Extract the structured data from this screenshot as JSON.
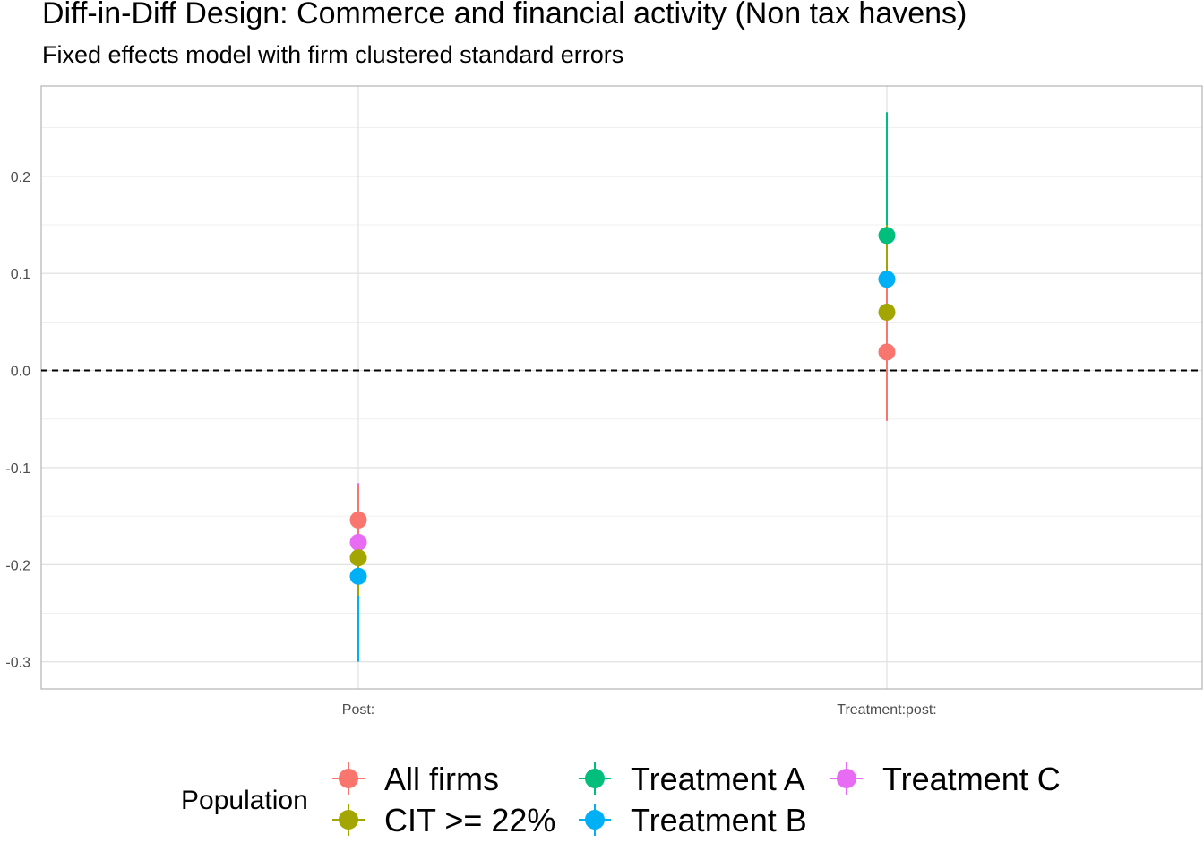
{
  "chart_data": {
    "type": "scatter",
    "title": "Diff-in-Diff Design: Commerce and financial activity (Non tax havens)",
    "subtitle": "Fixed effects model with firm clustered standard errors",
    "xlabel": "",
    "ylabel": "",
    "categories": [
      "Post:",
      "Treatment:post:"
    ],
    "ylim": [
      -0.328,
      0.293
    ],
    "yticks": [
      -0.3,
      -0.2,
      -0.1,
      0.0,
      0.1,
      0.2
    ],
    "ytick_labels": [
      "-0.3",
      "-0.2",
      "-0.1",
      "0.0",
      "0.1",
      "0.2"
    ],
    "reference_line": 0,
    "grid": true,
    "legend": {
      "title": "Population",
      "placement": "bottom"
    },
    "series": [
      {
        "name": "All firms",
        "color": "#F8766D",
        "estimates": [
          -0.154,
          0.019
        ],
        "lower": [
          -0.19,
          -0.052
        ],
        "upper": [
          -0.118,
          0.09
        ]
      },
      {
        "name": "CIT >= 22%",
        "color": "#A3A500",
        "estimates": [
          -0.193,
          0.06
        ],
        "lower": [
          -0.232,
          -0.03
        ],
        "upper": [
          -0.154,
          0.15
        ]
      },
      {
        "name": "Treatment A",
        "color": "#00BF7D",
        "estimates": [
          null,
          0.139
        ],
        "lower": [
          null,
          0.012
        ],
        "upper": [
          null,
          0.266
        ]
      },
      {
        "name": "Treatment B",
        "color": "#00B0F6",
        "estimates": [
          -0.212,
          0.094
        ],
        "lower": [
          -0.3,
          0.0
        ],
        "upper": [
          -0.124,
          0.188
        ]
      },
      {
        "name": "Treatment C",
        "color": "#E76BF3",
        "estimates": [
          -0.177,
          null
        ],
        "lower": [
          -0.217,
          null
        ],
        "upper": [
          -0.116,
          null
        ]
      }
    ]
  }
}
